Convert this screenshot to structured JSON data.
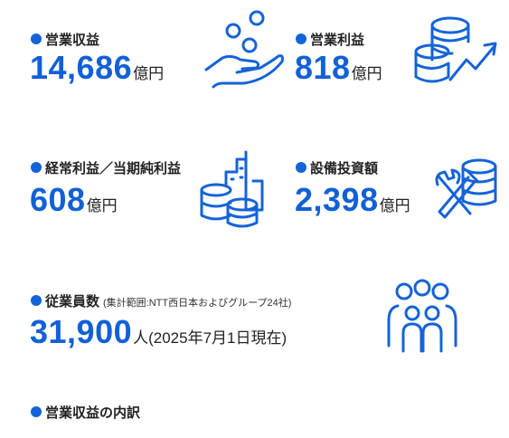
{
  "items": [
    {
      "label": "営業収益",
      "value": "14,686",
      "unit": "億円"
    },
    {
      "label": "営業利益",
      "value": "818",
      "unit": "億円"
    },
    {
      "label": "経常利益／当期純利益",
      "value": "608",
      "unit": "億円"
    },
    {
      "label": "設備投資額",
      "value": "2,398",
      "unit": "億円"
    },
    {
      "label": "従業員数",
      "note": "(集計範囲:NTT西日本およびグループ24社)",
      "value": "31,900",
      "unit": "人(2025年7月1日現在)"
    }
  ],
  "section": {
    "title": "営業収益の内訳"
  }
}
